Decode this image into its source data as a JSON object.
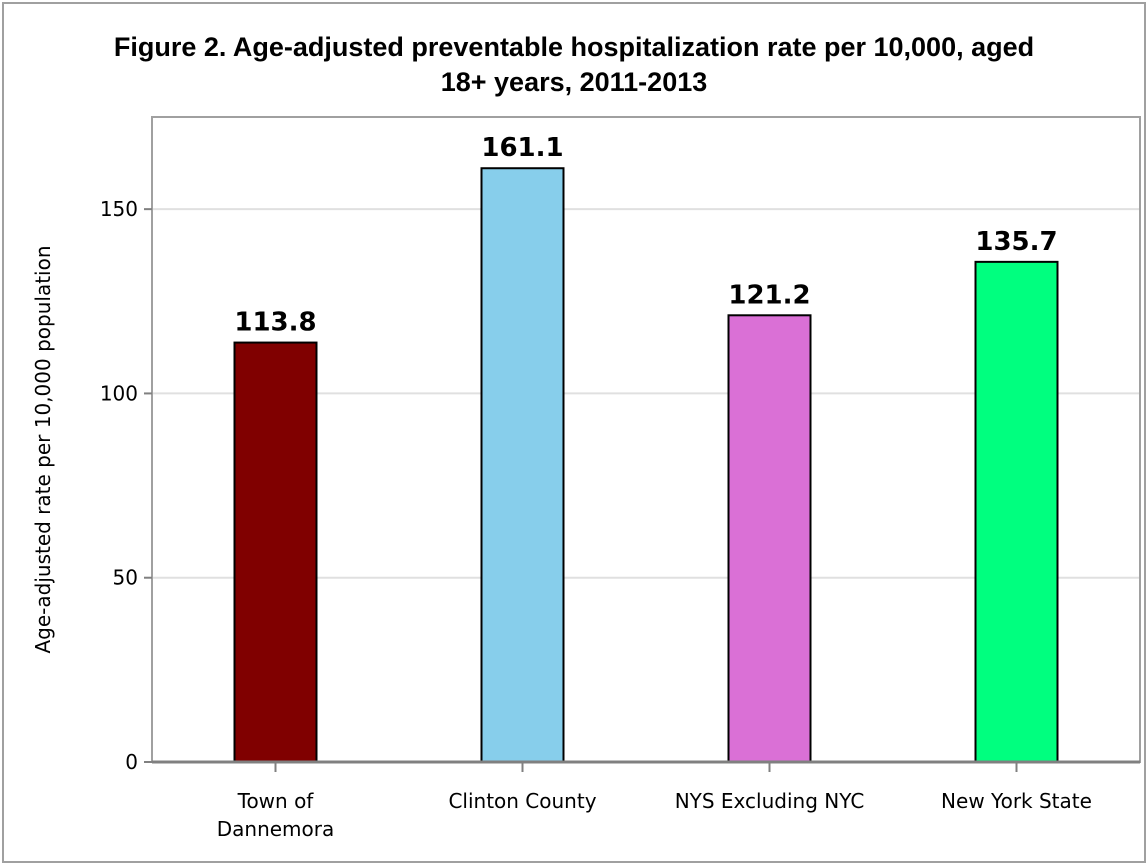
{
  "chart_data": {
    "type": "bar",
    "title_line1": "Figure 2. Age-adjusted preventable hospitalization rate per 10,000, aged",
    "title_line2": "18+ years, 2011-2013",
    "xlabel": "",
    "ylabel": "Age-adjusted rate per 10,000 population",
    "ylim": [
      0,
      175
    ],
    "yticks": [
      0,
      50,
      100,
      150
    ],
    "grid": true,
    "categories": [
      [
        "Town of",
        "Dannemora"
      ],
      [
        "Clinton County"
      ],
      [
        "NYS Excluding NYC"
      ],
      [
        "New York State"
      ]
    ],
    "values": [
      113.8,
      161.1,
      121.2,
      135.7
    ],
    "value_labels": [
      "113.8",
      "161.1",
      "121.2",
      "135.7"
    ],
    "colors": [
      "#800000",
      "#87ceeb",
      "#da70d6",
      "#00ff7f"
    ]
  }
}
